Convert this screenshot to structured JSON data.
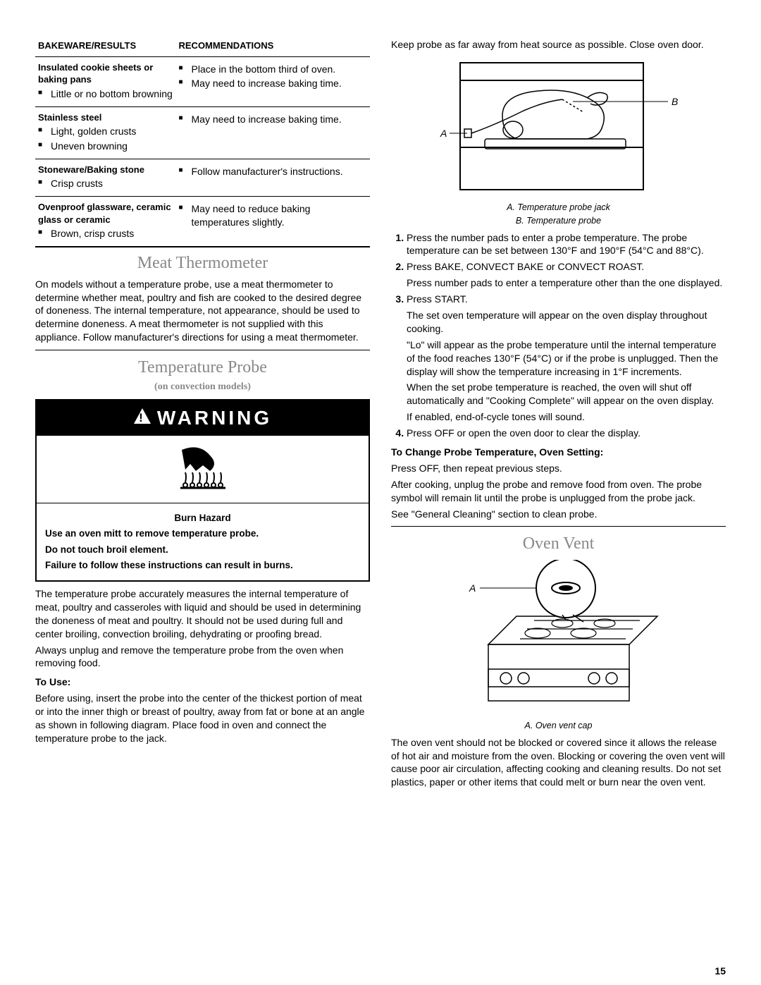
{
  "colors": {
    "text": "#000000",
    "background": "#ffffff",
    "heading_gray": "#888888",
    "border": "#000000"
  },
  "fonts": {
    "body_family": "Arial, Helvetica, sans-serif",
    "heading_family": "Georgia, Times New Roman, serif",
    "body_size": 14,
    "heading_size": 24
  },
  "bakeware": {
    "headers": [
      "BAKEWARE/RESULTS",
      "RECOMMENDATIONS"
    ],
    "rows": [
      {
        "title": "Insulated cookie sheets or baking pans",
        "results": [
          "Little or no bottom browning"
        ],
        "recs": [
          "Place in the bottom third of oven.",
          "May need to increase baking time."
        ]
      },
      {
        "title": "Stainless steel",
        "results": [
          "Light, golden crusts",
          "Uneven browning"
        ],
        "recs": [
          "May need to increase baking time."
        ]
      },
      {
        "title": "Stoneware/Baking stone",
        "results": [
          "Crisp crusts"
        ],
        "recs": [
          "Follow manufacturer's instructions."
        ]
      },
      {
        "title": "Ovenproof glassware, ceramic glass or ceramic",
        "results": [
          "Brown, crisp crusts"
        ],
        "recs": [
          "May need to reduce baking temperatures slightly."
        ]
      }
    ]
  },
  "meat_thermo": {
    "title": "Meat Thermometer",
    "body": "On models without a temperature probe, use a meat thermometer to determine whether meat, poultry and fish are cooked to the desired degree of doneness. The internal temperature, not appearance, should be used to determine doneness. A meat thermometer is not supplied with this appliance. Follow manufacturer's directions for using a meat thermometer."
  },
  "temp_probe": {
    "title": "Temperature Probe",
    "sub": "(on convection models)"
  },
  "warning": {
    "label": "WARNING",
    "lines": [
      "Burn Hazard",
      "Use an oven mitt to remove temperature probe.",
      "Do not touch broil element.",
      "Failure to follow these instructions can result in burns."
    ]
  },
  "probe_intro": [
    "The temperature probe accurately measures the internal temperature of meat, poultry and casseroles with liquid and should be used in determining the doneness of meat and poultry. It should not be used during full and center broiling, convection broiling, dehydrating or proofing bread.",
    "Always unplug and remove the temperature probe from the oven when removing food."
  ],
  "to_use": {
    "heading": "To Use:",
    "body": "Before using, insert the probe into the center of the thickest portion of meat or into the inner thigh or breast of poultry, away from fat or bone at an angle as shown in following diagram. Place food in oven and connect the temperature probe to the jack."
  },
  "right_intro": "Keep probe as far away from heat source as possible. Close oven door.",
  "diagram1": {
    "labelA": "A",
    "labelB": "B",
    "captionA": "A. Temperature probe jack",
    "captionB": "B. Temperature probe"
  },
  "steps": [
    {
      "paras": [
        "Press the number pads to enter a probe temperature. The probe temperature can be set between 130°F and 190°F (54°C and 88°C)."
      ]
    },
    {
      "paras": [
        "Press BAKE, CONVECT BAKE or CONVECT ROAST.",
        "Press number pads to enter a temperature other than the one displayed."
      ]
    },
    {
      "paras": [
        "Press START.",
        "The set oven temperature will appear on the oven display throughout cooking.",
        "\"Lo\" will appear as the probe temperature until the internal temperature of the food reaches 130°F (54°C) or if the probe is unplugged. Then the display will show the temperature increasing in 1°F increments.",
        "When the set probe temperature is reached, the oven will shut off automatically and \"Cooking Complete\" will appear on the oven display.",
        "If enabled, end-of-cycle tones will sound."
      ]
    },
    {
      "paras": [
        "Press OFF or open the oven door to clear the display."
      ]
    }
  ],
  "change_probe": {
    "heading": "To Change Probe Temperature, Oven Setting:",
    "paras": [
      "Press OFF, then repeat previous steps.",
      "After cooking, unplug the probe and remove food from oven. The probe symbol will remain lit until the probe is unplugged from the probe jack.",
      "See \"General Cleaning\" section to clean probe."
    ]
  },
  "oven_vent": {
    "title": "Oven Vent",
    "labelA": "A",
    "caption": "A. Oven vent cap",
    "body": "The oven vent should not be blocked or covered since it allows the release of hot air and moisture from the oven. Blocking or covering the oven vent will cause poor air circulation, affecting cooking and cleaning results. Do not set plastics, paper or other items that could melt or burn near the oven vent."
  },
  "page_number": "15"
}
